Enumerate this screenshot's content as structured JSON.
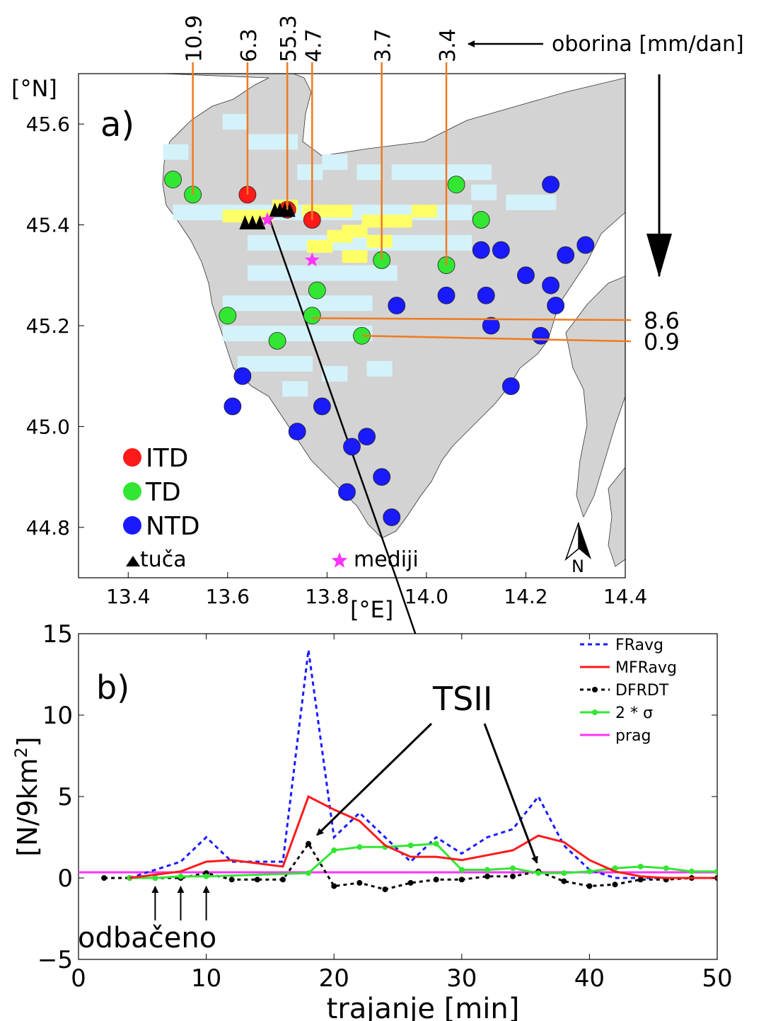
{
  "colors": {
    "land": "#d3d3d3",
    "sea": "#ffffff",
    "rain_light": "#d4f2fa",
    "rain_heavy": "#ffff66",
    "itd": "#ff1a1a",
    "td": "#33e633",
    "ntd": "#1a1aff",
    "hail": "#000000",
    "media": "#ff33ff",
    "leader": "#f07a1e",
    "fravg": "#1a1aff",
    "mfravg": "#ff1a1a",
    "dfrdt": "#000000",
    "sigma": "#33e633",
    "prag": "#ff33ff"
  },
  "map": {
    "panel_label": "a)",
    "y_unit": "[°N]",
    "x_unit": "[°E]",
    "xlim": [
      13.3,
      14.4
    ],
    "ylim": [
      44.7,
      45.7
    ],
    "x_ticks": [
      "13.4",
      "13.6",
      "13.8",
      "14.0",
      "14.2",
      "14.4"
    ],
    "y_ticks": [
      "45.6",
      "45.4",
      "45.2",
      "45.0",
      "44.8"
    ],
    "precip_title": "oborina [mm/dan]",
    "north_label": "N",
    "legend": {
      "itd": "ITD",
      "td": "TD",
      "ntd": "NTD",
      "hail": "tuča",
      "media": "mediji"
    },
    "stations_itd": [
      [
        13.64,
        45.46
      ],
      [
        13.72,
        45.43
      ],
      [
        13.77,
        45.41
      ]
    ],
    "stations_td": [
      [
        13.49,
        45.49
      ],
      [
        13.53,
        45.46
      ],
      [
        14.06,
        45.48
      ],
      [
        14.11,
        45.41
      ],
      [
        13.91,
        45.33
      ],
      [
        14.04,
        45.32
      ],
      [
        13.78,
        45.27
      ],
      [
        13.6,
        45.22
      ],
      [
        13.77,
        45.22
      ],
      [
        13.87,
        45.18
      ],
      [
        13.7,
        45.17
      ]
    ],
    "stations_ntd": [
      [
        14.25,
        45.48
      ],
      [
        14.32,
        45.36
      ],
      [
        14.11,
        45.35
      ],
      [
        14.15,
        45.35
      ],
      [
        14.28,
        45.34
      ],
      [
        14.2,
        45.3
      ],
      [
        14.25,
        45.28
      ],
      [
        13.94,
        45.24
      ],
      [
        14.04,
        45.26
      ],
      [
        14.12,
        45.26
      ],
      [
        14.26,
        45.24
      ],
      [
        14.13,
        45.2
      ],
      [
        14.23,
        45.18
      ],
      [
        13.63,
        45.1
      ],
      [
        14.17,
        45.08
      ],
      [
        13.61,
        45.04
      ],
      [
        13.79,
        45.04
      ],
      [
        13.74,
        44.99
      ],
      [
        13.88,
        44.98
      ],
      [
        13.85,
        44.96
      ],
      [
        13.91,
        44.9
      ],
      [
        13.84,
        44.87
      ],
      [
        13.93,
        44.82
      ]
    ],
    "hail": [
      [
        13.635,
        45.405
      ],
      [
        13.65,
        45.405
      ],
      [
        13.665,
        45.405
      ],
      [
        13.695,
        45.43
      ],
      [
        13.705,
        45.43
      ],
      [
        13.715,
        45.43
      ],
      [
        13.725,
        45.43
      ]
    ],
    "media_points": [
      [
        13.68,
        45.41
      ],
      [
        13.77,
        45.33
      ]
    ],
    "precip_top": [
      {
        "value": "10.9",
        "x": 13.53,
        "y": 45.46
      },
      {
        "value": "6.3",
        "x": 13.64,
        "y": 45.46
      },
      {
        "value": "55.3",
        "x": 13.72,
        "y": 45.43
      },
      {
        "value": "4.7",
        "x": 13.77,
        "y": 45.41
      },
      {
        "value": "3.7",
        "x": 13.91,
        "y": 45.33
      },
      {
        "value": "3.4",
        "x": 14.04,
        "y": 45.32
      }
    ],
    "precip_side": [
      {
        "value": "8.6",
        "x": 13.77,
        "y": 45.215
      },
      {
        "value": "0.9",
        "x": 13.87,
        "y": 45.18
      }
    ],
    "track": [
      [
        13.685,
        45.41
      ],
      [
        13.95,
        44.7
      ]
    ]
  },
  "chart_data": {
    "type": "line",
    "panel_label": "b)",
    "xlabel": "trajanje [min]",
    "ylabel_main": "[N/9km",
    "ylabel_sup": "2",
    "ylabel_end": "]",
    "xlim": [
      0,
      50
    ],
    "ylim": [
      -5,
      15
    ],
    "x_ticks": [
      "0",
      "10",
      "20",
      "30",
      "40",
      "50"
    ],
    "y_ticks": [
      "15",
      "10",
      "5",
      "0",
      "−5"
    ],
    "x": [
      2,
      4,
      6,
      8,
      10,
      12,
      14,
      16,
      18,
      20,
      22,
      24,
      26,
      28,
      30,
      32,
      34,
      36,
      38,
      40,
      42,
      44,
      46,
      48,
      50
    ],
    "series": [
      {
        "name": "FRavg",
        "values": [
          null,
          0.0,
          0.5,
          1.0,
          2.5,
          1.0,
          1.0,
          1.0,
          14.0,
          2.5,
          4.0,
          2.5,
          1.0,
          2.5,
          1.5,
          2.5,
          3.0,
          5.0,
          2.0,
          0.5,
          0.0,
          0.0,
          0.0,
          0.0,
          0.0
        ]
      },
      {
        "name": "MFRavg",
        "values": [
          null,
          0.0,
          0.2,
          0.4,
          1.0,
          1.1,
          0.9,
          0.7,
          5.0,
          4.2,
          3.5,
          2.0,
          1.3,
          1.3,
          1.1,
          1.4,
          1.7,
          2.6,
          2.2,
          1.1,
          0.4,
          0.1,
          0.0,
          0.0,
          0.0
        ]
      },
      {
        "name": "DFRDT",
        "values": [
          0.0,
          0.0,
          0.0,
          0.0,
          0.3,
          -0.1,
          -0.1,
          -0.1,
          2.1,
          -0.5,
          -0.3,
          -0.7,
          -0.3,
          -0.1,
          -0.1,
          0.1,
          0.1,
          0.4,
          -0.2,
          -0.5,
          -0.4,
          -0.1,
          -0.1,
          0.0,
          0.0
        ]
      },
      {
        "name": "2 * σ",
        "values": [
          null,
          0.0,
          0.0,
          0.1,
          0.1,
          null,
          null,
          null,
          0.3,
          1.7,
          1.9,
          1.9,
          2.0,
          2.1,
          0.5,
          0.5,
          0.6,
          0.3,
          0.3,
          0.4,
          0.6,
          0.7,
          0.6,
          0.4,
          0.4
        ]
      },
      {
        "name": "prag",
        "values": [
          0.35,
          0.35,
          0.35,
          0.35,
          0.35,
          0.35,
          0.35,
          0.35,
          0.35,
          0.35,
          0.35,
          0.35,
          0.35,
          0.35,
          0.35,
          0.35,
          0.35,
          0.35,
          0.35,
          0.35,
          0.35,
          0.35,
          0.35,
          0.35,
          0.35
        ]
      }
    ],
    "annotations": {
      "tsii": "TSII",
      "odbaceno": "odbačeno",
      "tsii_targets": [
        [
          18,
          2.2
        ],
        [
          36,
          0.4
        ]
      ],
      "odbaceno_targets": [
        6,
        8,
        10
      ]
    },
    "legend_position": "top-right",
    "grid": false
  }
}
